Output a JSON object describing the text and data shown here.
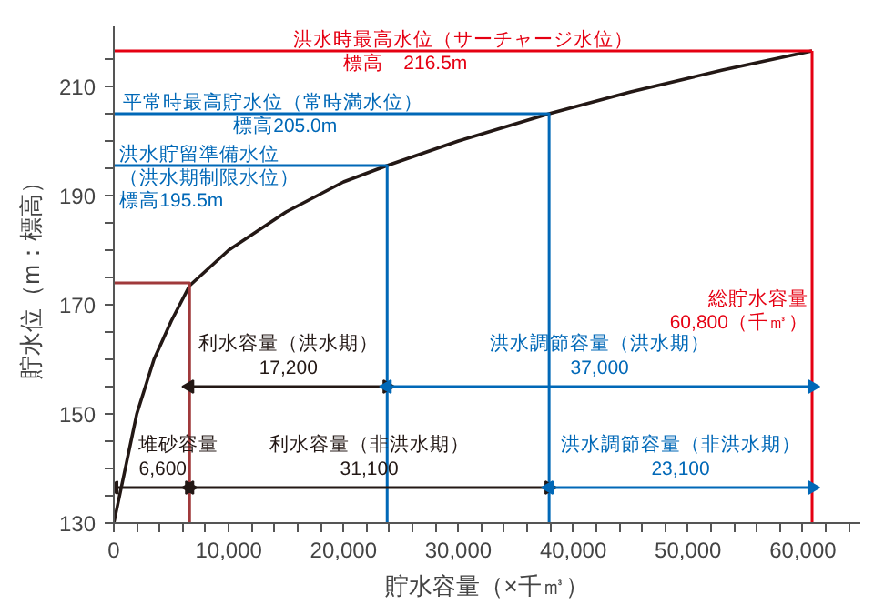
{
  "chart_data": {
    "type": "line",
    "xlabel": "貯水容量（×千㎥）",
    "ylabel": "貯水位（m：標高）",
    "xlim": [
      0,
      65000
    ],
    "ylim": [
      130,
      221
    ],
    "xticks": [
      0,
      {
        "value": 2000,
        "label": null
      },
      {
        "value": 4000,
        "label": null
      },
      {
        "value": 6000,
        "label": null
      },
      {
        "value": 8000,
        "label": null
      },
      {
        "value": 10000,
        "label": "10,000"
      },
      {
        "value": 12000,
        "label": null
      },
      {
        "value": 14000,
        "label": null
      },
      {
        "value": 16000,
        "label": null
      },
      {
        "value": 18000,
        "label": null
      },
      {
        "value": 20000,
        "label": "20,000"
      },
      {
        "value": 22000,
        "label": null
      },
      {
        "value": 24000,
        "label": null
      },
      {
        "value": 26000,
        "label": null
      },
      {
        "value": 28000,
        "label": null
      },
      {
        "value": 30000,
        "label": "30,000"
      },
      {
        "value": 32000,
        "label": null
      },
      {
        "value": 34000,
        "label": null
      },
      {
        "value": 36000,
        "label": null
      },
      {
        "value": 38000,
        "label": null
      },
      {
        "value": 40000,
        "label": "40,000"
      },
      {
        "value": 42000,
        "label": null
      },
      {
        "value": 44000,
        "label": null
      },
      {
        "value": 46000,
        "label": null
      },
      {
        "value": 48000,
        "label": null
      },
      {
        "value": 50000,
        "label": "50,000"
      },
      {
        "value": 52000,
        "label": null
      },
      {
        "value": 54000,
        "label": null
      },
      {
        "value": 56000,
        "label": null
      },
      {
        "value": 58000,
        "label": null
      },
      {
        "value": 60000,
        "label": "60,000"
      },
      {
        "value": 62000,
        "label": null
      },
      {
        "value": 64000,
        "label": null
      }
    ],
    "yticks": [
      130,
      {
        "value": 135,
        "label": null
      },
      {
        "value": 140,
        "label": null
      },
      {
        "value": 145,
        "label": null
      },
      150,
      {
        "value": 155,
        "label": null
      },
      {
        "value": 160,
        "label": null
      },
      {
        "value": 165,
        "label": null
      },
      170,
      {
        "value": 175,
        "label": null
      },
      {
        "value": 180,
        "label": null
      },
      {
        "value": 185,
        "label": null
      },
      190,
      {
        "value": 195,
        "label": null
      },
      {
        "value": 200,
        "label": null
      },
      {
        "value": 205,
        "label": null
      },
      210,
      {
        "value": 215,
        "label": null
      }
    ],
    "grid": false,
    "annotations": [
      {
        "text": "標高　216.5m",
        "x": 20000,
        "y": 216.5
      },
      {
        "text": "標高205.0m",
        "x": 10400,
        "y": 205
      },
      {
        "text": "（洪水期制限水位）",
        "x": 500,
        "y": 195.5
      },
      {
        "text": "標高195.5m",
        "x": 500,
        "y": 195.5
      }
    ],
    "series": [
      {
        "color": "#231815",
        "x": [
          0,
          300,
          1000,
          2000,
          3500,
          5000,
          6600,
          10000,
          15000,
          20000,
          23800,
          30000,
          37900,
          45000,
          53000,
          60800
        ],
        "values": [
          130,
          133,
          140,
          150,
          160,
          167,
          173.5,
          180,
          187,
          192.5,
          195.5,
          200,
          205,
          209,
          213,
          216.5
        ]
      },
      {
        "color": "#a0393b",
        "x": [
          0,
          6600,
          6600
        ],
        "values": [
          174,
          174,
          130
        ]
      },
      {
        "name": "洪水時最高水位（サーチャージ水位）",
        "color": "#e50012",
        "x": [
          0,
          60800
        ],
        "values": [
          216.5,
          216.5
        ]
      },
      {
        "name": "総貯水容量\n60,800（千㎥）",
        "color": "#e50012",
        "x": [
          60800,
          60800
        ],
        "values": [
          130,
          216.5
        ]
      },
      {
        "name": "平常時最高貯水位（常時満水位）",
        "color": "#0068b7",
        "x": [
          0,
          37900,
          37900
        ],
        "values": [
          205,
          205,
          130
        ]
      },
      {
        "name": "洪水貯留準備水位",
        "color": "#0068b7",
        "x": [
          0,
          23800,
          23800
        ],
        "values": [
          195.5,
          195.5,
          130
        ]
      },
      {
        "name": "利水容量（洪水期）\n17,200",
        "color": "#231815",
        "marker": "triangle",
        "x": [
          6600,
          23800
        ],
        "values": [
          155,
          155
        ]
      },
      {
        "name": "洪水調節容量（洪水期）\n37,000",
        "color": "#0068b7",
        "marker": "triangle",
        "x": [
          23800,
          60800
        ],
        "values": [
          155,
          155
        ]
      },
      {
        "name": "堆砂容量\n6,600",
        "color": "#231815",
        "marker": "triangle",
        "x": [
          0,
          6600
        ],
        "values": [
          136.5,
          136.5
        ]
      },
      {
        "name": "利水容量（非洪水期）\n31,100",
        "color": "#231815",
        "marker": "triangle",
        "x": [
          6600,
          37900
        ],
        "values": [
          136.5,
          136.5
        ]
      },
      {
        "name": "洪水調節容量（非洪水期）\n23,100",
        "color": "#0068b7",
        "marker": "triangle",
        "x": [
          37900,
          60800
        ],
        "values": [
          136.5,
          136.5
        ]
      }
    ]
  }
}
